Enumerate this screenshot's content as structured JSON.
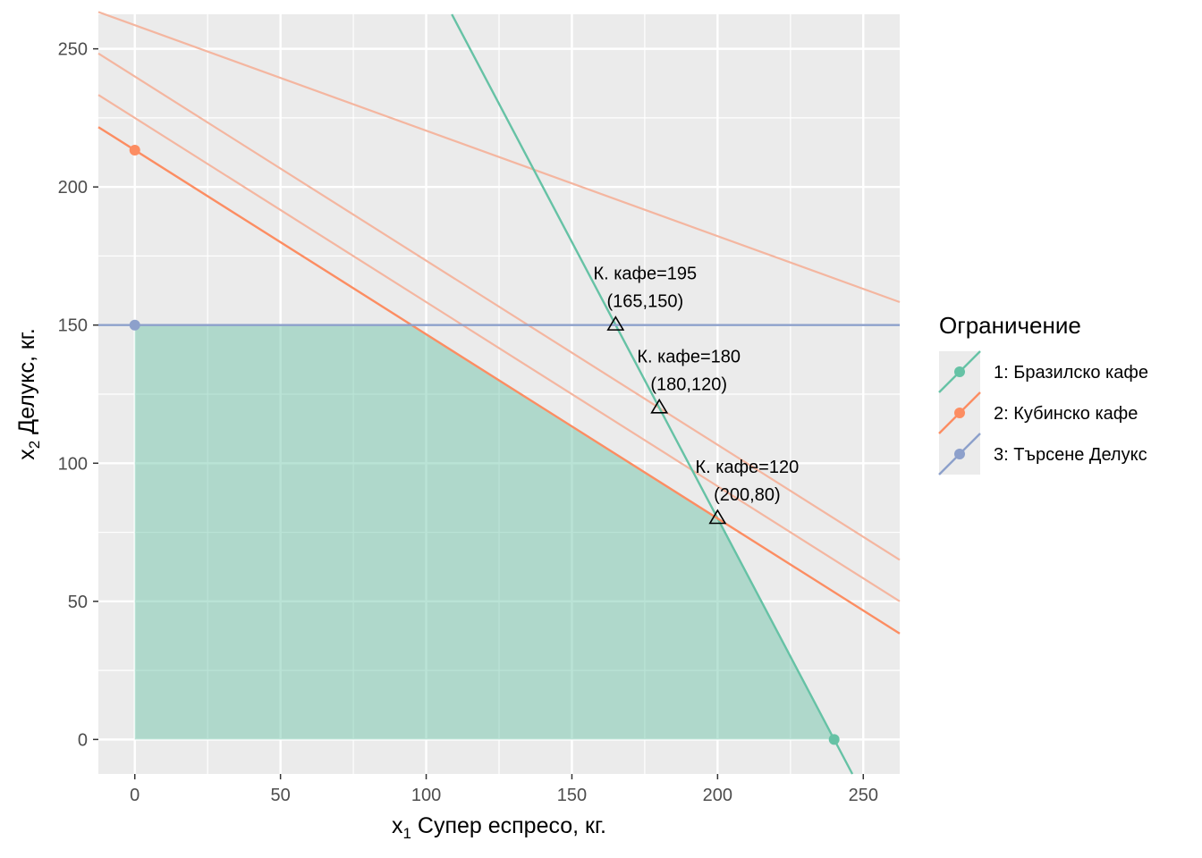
{
  "chart_data": {
    "type": "line",
    "title": "",
    "xlabel_var": "x",
    "xlabel_sub": "1",
    "xlabel_rest": " Супер еспресо, кг.",
    "ylabel_var": "x",
    "ylabel_sub": "2",
    "ylabel_rest": " Делукс, кг.",
    "xlim": [
      -12.5,
      262.5
    ],
    "ylim": [
      -12.5,
      262.5
    ],
    "x_ticks": [
      0,
      50,
      100,
      150,
      200,
      250
    ],
    "y_ticks": [
      0,
      50,
      100,
      150,
      200,
      250
    ],
    "grid": true,
    "feasible_region": {
      "color": "#66c2a5",
      "polygon": [
        [
          0,
          0
        ],
        [
          0,
          150
        ],
        [
          95,
          150
        ],
        [
          200,
          80
        ],
        [
          240,
          0
        ]
      ]
    },
    "series": [
      {
        "name": "1: Бразилско кафе",
        "color": "#66c2a5",
        "line": {
          "x": [
            108.8,
            246.25
          ],
          "y": [
            262.5,
            -12.5
          ]
        },
        "point": [
          240,
          0
        ]
      },
      {
        "name": "2: Кубинско кафе",
        "color": "#fc8d62",
        "line": {
          "x": [
            -12.5,
            262.5
          ],
          "y": [
            221.67,
            38.33
          ]
        },
        "point": [
          0,
          213.33
        ]
      },
      {
        "name": "3: Търсене Делукс",
        "color": "#8da0cb",
        "line": {
          "x": [
            -12.5,
            262.5
          ],
          "y": [
            150,
            150
          ]
        },
        "point": [
          0,
          150
        ]
      }
    ],
    "objective_lines": {
      "color": "#f4b6a0",
      "lines": [
        {
          "x": [
            -12.5,
            262.5
          ],
          "y": [
            248.33,
            65.0
          ]
        },
        {
          "x": [
            -12.5,
            262.5
          ],
          "y": [
            233.33,
            50.0
          ]
        },
        {
          "x": [
            -12.5,
            262.5
          ],
          "y": [
            263.33,
            158.33
          ]
        }
      ]
    },
    "annotations": [
      {
        "x": 165,
        "y": 150,
        "label": "К. кафе=195",
        "coords": "(165,150)"
      },
      {
        "x": 180,
        "y": 120,
        "label": "К. кафе=180",
        "coords": "(180,120)"
      },
      {
        "x": 200,
        "y": 80,
        "label": "К. кафе=120",
        "coords": "(200,80)"
      }
    ],
    "legend": {
      "title": "Ограничение",
      "position": "right",
      "items": [
        "1: Бразилско кафе",
        "2: Кубинско кафе",
        "3: Търсене Делукс"
      ]
    }
  }
}
